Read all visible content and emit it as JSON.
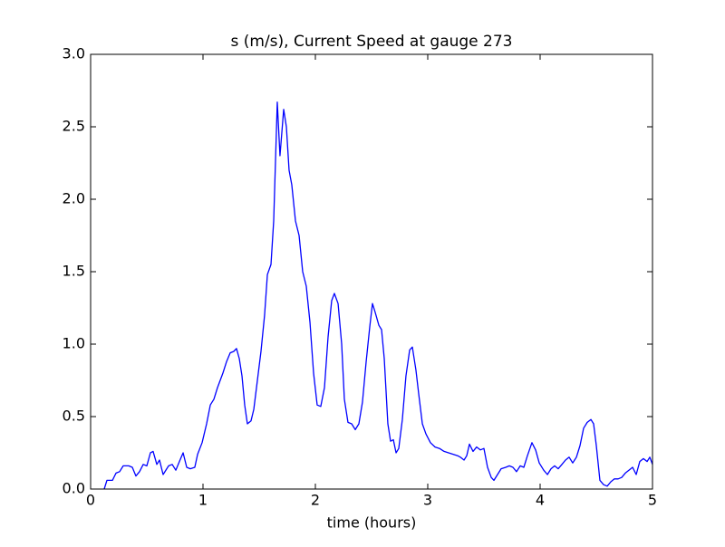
{
  "chart_data": {
    "type": "line",
    "title": "s (m/s), Current Speed at gauge 273",
    "xlabel": "time (hours)",
    "xlim": [
      0,
      5
    ],
    "xticks": [
      0,
      1,
      2,
      3,
      4,
      5
    ],
    "ylim": [
      0,
      3
    ],
    "yticks": [
      {
        "value": 0,
        "label": "0.0"
      },
      0.5,
      {
        "value": 1,
        "label": "1.0"
      },
      1.5,
      {
        "value": 2,
        "label": "2.0"
      },
      2.5,
      {
        "value": 3,
        "label": "3.0"
      }
    ],
    "grid": false,
    "reference_line": {
      "value": 0,
      "color": "#000000",
      "dashed": true
    },
    "x": [
      0.121,
      0.145,
      0.194,
      0.226,
      0.258,
      0.29,
      0.339,
      0.371,
      0.403,
      0.435,
      0.468,
      0.5,
      0.532,
      0.556,
      0.589,
      0.613,
      0.645,
      0.694,
      0.726,
      0.758,
      0.79,
      0.823,
      0.855,
      0.887,
      0.927,
      0.952,
      0.992,
      1.032,
      1.065,
      1.097,
      1.129,
      1.177,
      1.21,
      1.242,
      1.274,
      1.298,
      1.323,
      1.347,
      1.371,
      1.395,
      1.427,
      1.452,
      1.484,
      1.516,
      1.548,
      1.573,
      1.605,
      1.629,
      1.661,
      1.685,
      1.718,
      1.742,
      1.766,
      1.79,
      1.823,
      1.855,
      1.887,
      1.919,
      1.952,
      1.984,
      2.016,
      2.048,
      2.081,
      2.113,
      2.145,
      2.169,
      2.202,
      2.234,
      2.258,
      2.29,
      2.323,
      2.355,
      2.387,
      2.419,
      2.452,
      2.484,
      2.508,
      2.532,
      2.565,
      2.589,
      2.613,
      2.645,
      2.669,
      2.694,
      2.718,
      2.742,
      2.774,
      2.806,
      2.839,
      2.863,
      2.895,
      2.919,
      2.952,
      2.984,
      3.024,
      3.065,
      3.105,
      3.145,
      3.185,
      3.226,
      3.266,
      3.29,
      3.323,
      3.347,
      3.371,
      3.403,
      3.435,
      3.468,
      3.5,
      3.532,
      3.565,
      3.589,
      3.621,
      3.653,
      3.694,
      3.726,
      3.758,
      3.79,
      3.823,
      3.855,
      3.887,
      3.927,
      3.96,
      3.992,
      4.032,
      4.065,
      4.097,
      4.129,
      4.161,
      4.194,
      4.226,
      4.258,
      4.29,
      4.323,
      4.355,
      4.387,
      4.419,
      4.452,
      4.476,
      4.5,
      4.532,
      4.565,
      4.597,
      4.629,
      4.661,
      4.694,
      4.726,
      4.758,
      4.79,
      4.823,
      4.855,
      4.887,
      4.919,
      4.952,
      4.976,
      5.0
    ],
    "series": [
      {
        "color": "#0000ff",
        "values": [
          0,
          0.06,
          0.06,
          0.11,
          0.12,
          0.16,
          0.16,
          0.15,
          0.09,
          0.12,
          0.17,
          0.16,
          0.25,
          0.26,
          0.17,
          0.2,
          0.1,
          0.16,
          0.17,
          0.13,
          0.19,
          0.25,
          0.15,
          0.14,
          0.15,
          0.24,
          0.32,
          0.45,
          0.58,
          0.62,
          0.7,
          0.8,
          0.88,
          0.94,
          0.95,
          0.97,
          0.9,
          0.78,
          0.58,
          0.45,
          0.47,
          0.55,
          0.75,
          0.95,
          1.2,
          1.48,
          1.55,
          1.85,
          2.67,
          2.3,
          2.62,
          2.5,
          2.2,
          2.1,
          1.85,
          1.75,
          1.5,
          1.4,
          1.15,
          0.8,
          0.58,
          0.57,
          0.7,
          1.05,
          1.3,
          1.35,
          1.28,
          1.0,
          0.62,
          0.46,
          0.45,
          0.41,
          0.45,
          0.6,
          0.88,
          1.12,
          1.28,
          1.22,
          1.13,
          1.1,
          0.9,
          0.45,
          0.33,
          0.34,
          0.25,
          0.28,
          0.48,
          0.78,
          0.96,
          0.98,
          0.82,
          0.66,
          0.45,
          0.38,
          0.32,
          0.29,
          0.28,
          0.26,
          0.25,
          0.24,
          0.23,
          0.22,
          0.2,
          0.23,
          0.31,
          0.26,
          0.29,
          0.27,
          0.28,
          0.15,
          0.08,
          0.06,
          0.1,
          0.14,
          0.15,
          0.16,
          0.15,
          0.12,
          0.16,
          0.15,
          0.23,
          0.32,
          0.27,
          0.18,
          0.13,
          0.1,
          0.14,
          0.16,
          0.14,
          0.17,
          0.2,
          0.22,
          0.18,
          0.22,
          0.3,
          0.42,
          0.46,
          0.48,
          0.45,
          0.3,
          0.06,
          0.03,
          0.02,
          0.05,
          0.07,
          0.07,
          0.08,
          0.11,
          0.13,
          0.15,
          0.1,
          0.19,
          0.21,
          0.19,
          0.22,
          0.17
        ]
      }
    ]
  }
}
